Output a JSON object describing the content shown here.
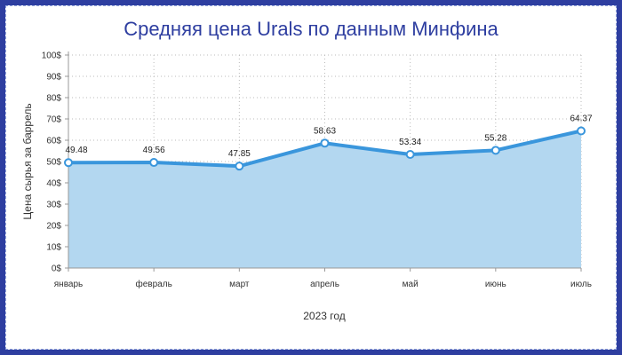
{
  "chart_data": {
    "type": "area",
    "title": "Средняя цена Urals по данным Минфина",
    "xlabel": "2023 год",
    "ylabel": "Цена сырья за баррель",
    "categories": [
      "январь",
      "февраль",
      "март",
      "апрель",
      "май",
      "июнь",
      "июль"
    ],
    "values": [
      49.48,
      49.56,
      47.85,
      58.63,
      53.34,
      55.28,
      64.37
    ],
    "data_labels": [
      "49.48",
      "49.56",
      "47.85",
      "58.63",
      "53.34",
      "55.28",
      "64.37"
    ],
    "ylim": [
      0,
      100
    ],
    "yticks": [
      "0$",
      "10$",
      "20$",
      "30$",
      "40$",
      "50$",
      "60$",
      "70$",
      "80$",
      "90$",
      "100$"
    ],
    "grid": true,
    "colors": {
      "line": "#3a96dc",
      "fill": "#b3d7f0",
      "frame": "#2e3ea0",
      "title": "#2e3ea0"
    }
  }
}
